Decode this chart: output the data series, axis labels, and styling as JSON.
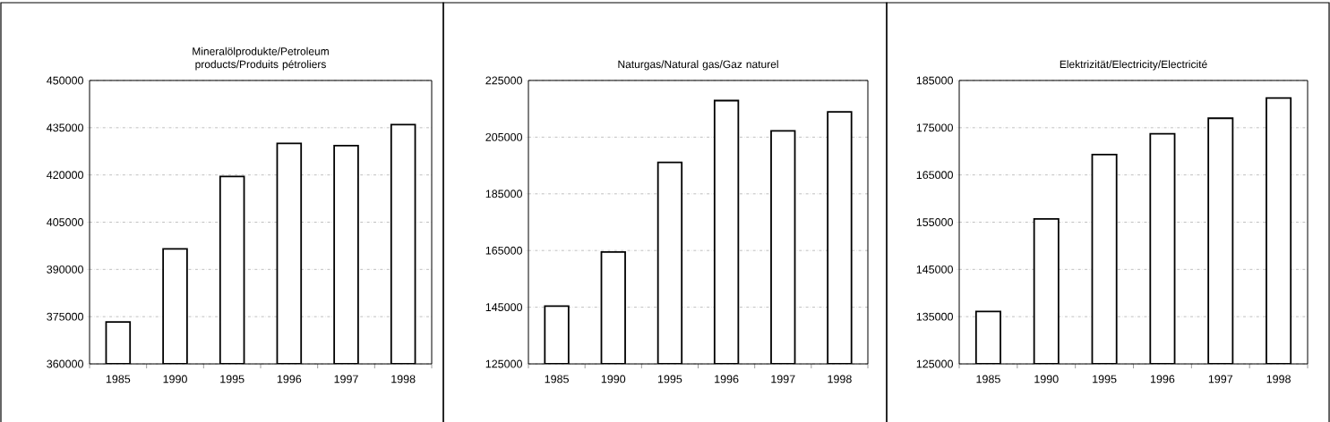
{
  "chart_data": [
    {
      "type": "bar",
      "title": "Mineralölprodukte/Petroleum products/Produits pétroliers",
      "categories": [
        "1985",
        "1990",
        "1995",
        "1996",
        "1997",
        "1998"
      ],
      "values": [
        373300,
        396500,
        419500,
        430000,
        429300,
        436000
      ],
      "color": "#ffffff",
      "ylim": [
        360000,
        450000
      ],
      "yticks": [
        360000,
        375000,
        390000,
        405000,
        420000,
        435000,
        450000
      ],
      "grid": "y"
    },
    {
      "type": "bar",
      "title": "Naturgas/Natural gas/Gaz naturel",
      "categories": [
        "1985",
        "1990",
        "1995",
        "1996",
        "1997",
        "1998"
      ],
      "values": [
        145400,
        164500,
        196100,
        217900,
        207200,
        213900
      ],
      "color": "#ffffff",
      "ylim": [
        125000,
        225000
      ],
      "yticks": [
        125000,
        145000,
        165000,
        185000,
        205000,
        225000
      ],
      "grid": "y"
    },
    {
      "type": "bar",
      "title": "Elektrizität/Electricity/Electricité",
      "categories": [
        "1985",
        "1990",
        "1995",
        "1996",
        "1997",
        "1998"
      ],
      "values": [
        136100,
        155700,
        169300,
        173700,
        177000,
        181300
      ],
      "color": "#ffffff",
      "ylim": [
        125000,
        185000
      ],
      "yticks": [
        125000,
        135000,
        145000,
        155000,
        165000,
        175000,
        185000
      ],
      "grid": "y"
    }
  ]
}
